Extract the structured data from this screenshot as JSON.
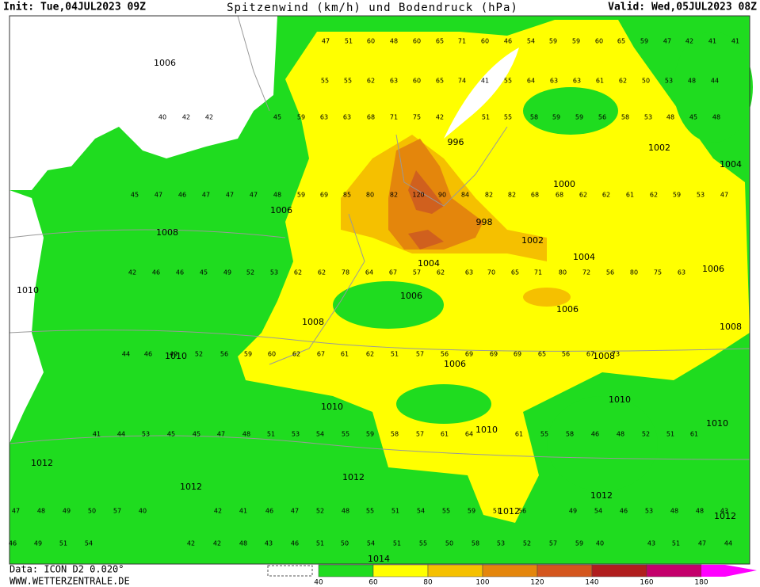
{
  "header": {
    "init": "Init: Tue,04JUL2023 09Z",
    "title": "Spitzenwind (km/h) und Bodendruck (hPa)",
    "valid": "Valid: Wed,05JUL2023 08Z"
  },
  "footer": {
    "data": "Data: ICON D2 0.020°",
    "site": "WWW.WETTERZENTRALE.DE"
  },
  "legend": {
    "ticks": [
      40,
      60,
      80,
      100,
      120,
      140,
      160,
      180
    ]
  },
  "isobar_labels": [
    1006,
    996,
    1002,
    1004,
    1000,
    1006,
    1008,
    998,
    1002,
    1004,
    1004,
    1006,
    1010,
    1006,
    1006,
    1008,
    1008,
    1010,
    1008,
    1006,
    1010,
    1010,
    1010,
    1010,
    1012,
    1012,
    1012,
    1012,
    1012,
    1012,
    1014
  ],
  "wind_speeds": [
    [
      47,
      51,
      60,
      48,
      60,
      65,
      71,
      60,
      46,
      54,
      59,
      59,
      60,
      65,
      59,
      47,
      42,
      41,
      41
    ],
    [
      55,
      55,
      62,
      63,
      60,
      65,
      74,
      41,
      55,
      64,
      63,
      63,
      61,
      62,
      50,
      53,
      48,
      44
    ],
    [
      40,
      42,
      42,
      45,
      59,
      63,
      63,
      68,
      71,
      75,
      42,
      51,
      55,
      58,
      59,
      59,
      56,
      58,
      53,
      48,
      45,
      48
    ],
    [
      45,
      47,
      46,
      47,
      47,
      47,
      48,
      59,
      69,
      85,
      80,
      82,
      120,
      90,
      84,
      82,
      82,
      68,
      68,
      62,
      62,
      61,
      62,
      59,
      53,
      47
    ],
    [
      42,
      46,
      46,
      45,
      49,
      52,
      53,
      62,
      62,
      78,
      64,
      67,
      57,
      62,
      63,
      70,
      65,
      71,
      80,
      72,
      56,
      80,
      75,
      63
    ],
    [
      44,
      46,
      49,
      52,
      56,
      59,
      60,
      62,
      67,
      61,
      62,
      51,
      57,
      56,
      69,
      69,
      69,
      65,
      56,
      67,
      73
    ],
    [
      41,
      44,
      53,
      45,
      45,
      47,
      48,
      51,
      53,
      54,
      55,
      59,
      58,
      57,
      61,
      64,
      61,
      55,
      58,
      46,
      48,
      52,
      51,
      61
    ],
    [
      47,
      48,
      49,
      50,
      57,
      40,
      42,
      41,
      46,
      47,
      52,
      48,
      55,
      51,
      54,
      55,
      59,
      51,
      56,
      49,
      54,
      46,
      53,
      48,
      48,
      43
    ],
    [
      46,
      49,
      51,
      54,
      42,
      42,
      48,
      43,
      46,
      51,
      50,
      54,
      51,
      55,
      50,
      58,
      53,
      52,
      57,
      59,
      40,
      43,
      51,
      47,
      44
    ]
  ]
}
